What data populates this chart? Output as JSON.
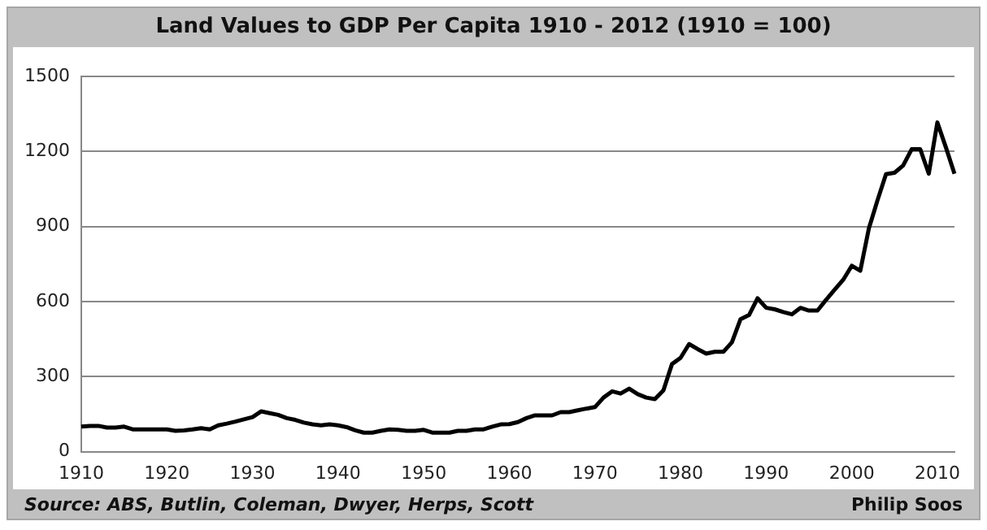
{
  "chart_data": {
    "type": "line",
    "title": "Land Values to GDP Per Capita 1910 - 2012 (1910 = 100)",
    "x": [
      1910,
      1911,
      1912,
      1913,
      1914,
      1915,
      1916,
      1917,
      1918,
      1919,
      1920,
      1921,
      1922,
      1923,
      1924,
      1925,
      1926,
      1927,
      1928,
      1929,
      1930,
      1931,
      1932,
      1933,
      1934,
      1935,
      1936,
      1937,
      1938,
      1939,
      1940,
      1941,
      1942,
      1943,
      1944,
      1945,
      1946,
      1947,
      1948,
      1949,
      1950,
      1951,
      1952,
      1953,
      1954,
      1955,
      1956,
      1957,
      1958,
      1959,
      1960,
      1961,
      1962,
      1963,
      1964,
      1965,
      1966,
      1967,
      1968,
      1969,
      1970,
      1971,
      1972,
      1973,
      1974,
      1975,
      1976,
      1977,
      1978,
      1979,
      1980,
      1981,
      1982,
      1983,
      1984,
      1985,
      1986,
      1987,
      1988,
      1989,
      1990,
      1991,
      1992,
      1993,
      1994,
      1995,
      1996,
      1997,
      1998,
      1999,
      2000,
      2001,
      2002,
      2003,
      2004,
      2005,
      2006,
      2007,
      2008,
      2009,
      2010,
      2011,
      2012
    ],
    "values": [
      100,
      103,
      103,
      96,
      96,
      100,
      89,
      89,
      89,
      89,
      89,
      83,
      85,
      89,
      94,
      89,
      105,
      112,
      120,
      129,
      138,
      161,
      154,
      147,
      134,
      127,
      116,
      109,
      105,
      109,
      105,
      98,
      85,
      76,
      76,
      83,
      89,
      87,
      83,
      83,
      87,
      76,
      76,
      76,
      83,
      83,
      89,
      89,
      100,
      109,
      110,
      118,
      134,
      145,
      145,
      145,
      158,
      158,
      165,
      172,
      178,
      216,
      241,
      232,
      252,
      230,
      216,
      210,
      245,
      350,
      375,
      430,
      410,
      392,
      399,
      399,
      437,
      529,
      546,
      613,
      575,
      569,
      558,
      549,
      575,
      564,
      564,
      607,
      647,
      687,
      743,
      723,
      892,
      1004,
      1109,
      1115,
      1144,
      1209,
      1209,
      1111,
      1316,
      1216,
      1111
    ],
    "color": "#000000",
    "xlim": [
      1910,
      2012
    ],
    "xticks": [
      1910,
      1920,
      1930,
      1940,
      1950,
      1960,
      1970,
      1980,
      1990,
      2000,
      2010
    ],
    "ylim": [
      0,
      1500
    ],
    "yticks": [
      0,
      300,
      600,
      900,
      1200,
      1500
    ],
    "grid": "y",
    "legend": false,
    "marker": "none",
    "annotations": [
      "Source: ABS, Butlin, Coleman, Dwyer, Herps, Scott",
      "Philip Soos"
    ]
  }
}
